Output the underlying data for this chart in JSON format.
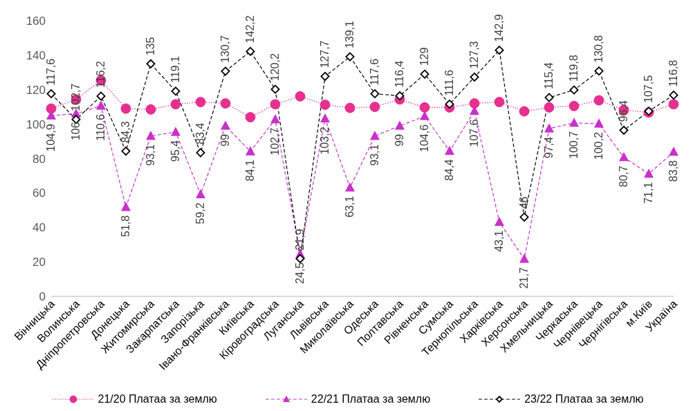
{
  "chart_data": {
    "type": "line",
    "categories": [
      "Вінницька",
      "Волинська",
      "Дніпропетровська",
      "Донецька",
      "Житомирська",
      "Закарпатська",
      "Запорізька",
      "Івано-Франківська",
      "Київська",
      "Кіровоградська",
      "Луганська",
      "Львівська",
      "Миколаївська",
      "Одеська",
      "Полтавська",
      "Рівненська",
      "Сумська",
      "Тернопільська",
      "Харківська",
      "Херсонська",
      "Хмельницька",
      "Черкаська",
      "Чернівецька",
      "Чернігівська",
      "м.Київ",
      "Україна"
    ],
    "series": [
      {
        "name": "21/20 Платаа за землю",
        "color": "#e6308f",
        "marker": "circle",
        "line_style": "dotted",
        "values": [
          109,
          114.3,
          125.4,
          109,
          108.5,
          111.5,
          112.8,
          112,
          104,
          111.5,
          116.1,
          111.2,
          109.4,
          110,
          114.3,
          109.7,
          109.7,
          112,
          112.8,
          107.4,
          109.7,
          110.5,
          113.8,
          108.2,
          106.7,
          111.5
        ]
      },
      {
        "name": "22/21 Платаа за землю",
        "color": "#c832c8",
        "marker": "triangle",
        "line_style": "dashed",
        "values": [
          104.9,
          106,
          110.6,
          51.8,
          93.1,
          95.4,
          59.2,
          99,
          84.1,
          102.7,
          24.5,
          103.2,
          63.1,
          93.1,
          99,
          104.6,
          84.4,
          107.6,
          43.1,
          21.7,
          97.4,
          100.7,
          100.2,
          80.7,
          71.1,
          83.8
        ],
        "value_labels": [
          "104,9",
          "106",
          "110,6",
          "51,8",
          "93,1",
          "95,4",
          "59,2",
          "99",
          "84,1",
          "102,7",
          "24,5",
          "103,2",
          "63,1",
          "93,1",
          "99",
          "104,6",
          "84,4",
          "107,6",
          "43,1",
          "21,7",
          "97,4",
          "100,7",
          "100,2",
          "80,7",
          "71,1",
          "83,8"
        ]
      },
      {
        "name": "23/22 Платаа за землю",
        "color": "#000000",
        "marker": "diamond",
        "line_style": "dashed",
        "values": [
          117.6,
          102.7,
          116.2,
          84.3,
          135,
          119.1,
          83.4,
          130.7,
          142.2,
          120.2,
          21.9,
          127.7,
          139.1,
          117.6,
          116.4,
          129,
          111.6,
          127.3,
          142.9,
          46,
          115.4,
          119.8,
          130.8,
          96.4,
          107.5,
          116.8
        ],
        "value_labels": [
          "117,6",
          "102,7",
          "116,2",
          "84,3",
          "135",
          "119,1",
          "83,4",
          "130,7",
          "142,2",
          "120,2",
          "21,9",
          "127,7",
          "139,1",
          "117,6",
          "116,4",
          "129",
          "111,6",
          "127,3",
          "142,9",
          "46",
          "115,4",
          "119,8",
          "130,8",
          "96,4",
          "107,5",
          "116,8"
        ]
      }
    ],
    "ylim": [
      0,
      160
    ],
    "yticks": [
      0,
      20,
      40,
      60,
      80,
      100,
      120,
      140,
      160
    ],
    "grid": false,
    "legend": "bottom"
  }
}
